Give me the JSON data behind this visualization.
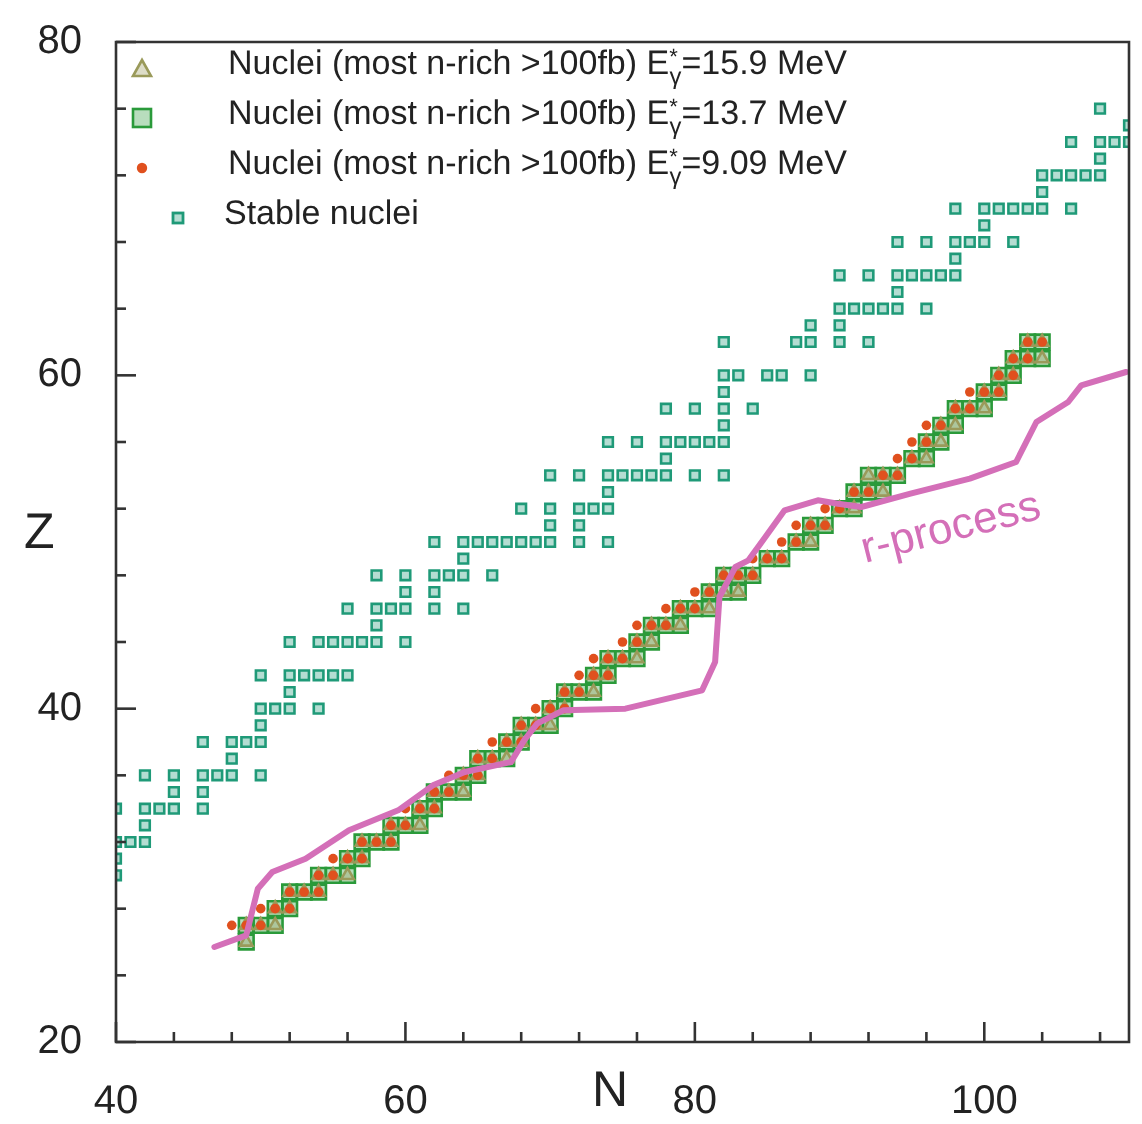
{
  "chart_data": {
    "type": "scatter",
    "xlabel": "N",
    "ylabel": "Z",
    "xlim": [
      40,
      110
    ],
    "ylim": [
      20,
      80
    ],
    "xticks": [
      40,
      {
        "value": 44,
        "label": null
      },
      {
        "value": 48,
        "label": null
      },
      {
        "value": 52,
        "label": null
      },
      {
        "value": 56,
        "label": null
      },
      60,
      {
        "value": 64,
        "label": null
      },
      {
        "value": 68,
        "label": null
      },
      {
        "value": 72,
        "label": null
      },
      {
        "value": 76,
        "label": null
      },
      80,
      {
        "value": 84,
        "label": null
      },
      {
        "value": 88,
        "label": null
      },
      {
        "value": 92,
        "label": null
      },
      {
        "value": 96,
        "label": null
      },
      100,
      {
        "value": 104,
        "label": null
      },
      {
        "value": 108,
        "label": null
      }
    ],
    "yticks": [
      20,
      {
        "value": 24,
        "label": null
      },
      {
        "value": 28,
        "label": null
      },
      {
        "value": 32,
        "label": null
      },
      {
        "value": 36,
        "label": null
      },
      40,
      {
        "value": 44,
        "label": null
      },
      {
        "value": 48,
        "label": null
      },
      {
        "value": 52,
        "label": null
      },
      {
        "value": 56,
        "label": null
      },
      60,
      {
        "value": 64,
        "label": null
      },
      {
        "value": 68,
        "label": null
      },
      {
        "value": 72,
        "label": null
      },
      {
        "value": 76,
        "label": null
      },
      80
    ],
    "legend": "top left",
    "series": [
      {
        "name": "Nuclei (most n-rich >100fb) E$^{*}$$_{γ}$=15.9 MeV",
        "color": "#9a9a5a",
        "marker": "triangle",
        "x": [
          49,
          49,
          50,
          51,
          51,
          52,
          52,
          53,
          54,
          54,
          55,
          56,
          56,
          57,
          57,
          58,
          59,
          59,
          60,
          61,
          61,
          62,
          62,
          63,
          64,
          64,
          65,
          65,
          66,
          67,
          67,
          68,
          68,
          69,
          70,
          70,
          71,
          71,
          72,
          73,
          73,
          74,
          74,
          75,
          76,
          76,
          77,
          77,
          78,
          79,
          79,
          80,
          81,
          81,
          82,
          83,
          82,
          83,
          84,
          85,
          86,
          87,
          88,
          88,
          89,
          90,
          91,
          91,
          92,
          93,
          92,
          93,
          94,
          95,
          96,
          96,
          97,
          97,
          98,
          98,
          99,
          100,
          100,
          101,
          101,
          102,
          102,
          103,
          104,
          103,
          104
        ],
        "values": [
          26,
          27,
          27,
          27,
          28,
          28,
          29,
          29,
          29,
          30,
          30,
          30,
          31,
          31,
          32,
          32,
          32,
          33,
          33,
          33,
          34,
          34,
          35,
          35,
          35,
          36,
          36,
          37,
          37,
          37,
          38,
          38,
          39,
          39,
          39,
          40,
          40,
          41,
          41,
          41,
          42,
          42,
          43,
          43,
          43,
          44,
          44,
          45,
          45,
          45,
          46,
          46,
          46,
          47,
          47,
          47,
          48,
          48,
          48,
          49,
          49,
          50,
          50,
          51,
          51,
          52,
          52,
          53,
          53,
          53,
          54,
          54,
          54,
          55,
          55,
          56,
          56,
          57,
          57,
          58,
          58,
          58,
          59,
          59,
          60,
          60,
          61,
          61,
          61,
          62,
          62
        ]
      },
      {
        "name": "Nuclei (most n-rich >100fb) E$^{*}$$_{γ}$=13.7 MeV",
        "color": "#2a9a3a",
        "marker": "square",
        "x": [
          49,
          49,
          50,
          51,
          51,
          52,
          52,
          53,
          54,
          54,
          55,
          56,
          56,
          57,
          57,
          58,
          59,
          59,
          60,
          61,
          61,
          62,
          62,
          63,
          64,
          64,
          65,
          65,
          66,
          67,
          67,
          68,
          68,
          69,
          70,
          70,
          71,
          71,
          72,
          73,
          73,
          74,
          74,
          75,
          76,
          76,
          77,
          77,
          78,
          79,
          79,
          80,
          81,
          81,
          82,
          83,
          82,
          83,
          84,
          85,
          86,
          87,
          88,
          88,
          89,
          90,
          91,
          91,
          92,
          93,
          92,
          93,
          94,
          95,
          96,
          96,
          97,
          97,
          98,
          98,
          99,
          100,
          100,
          101,
          101,
          102,
          102,
          103,
          104,
          103,
          104
        ],
        "values": [
          26,
          27,
          27,
          27,
          28,
          28,
          29,
          29,
          29,
          30,
          30,
          30,
          31,
          31,
          32,
          32,
          32,
          33,
          33,
          33,
          34,
          34,
          35,
          35,
          35,
          36,
          36,
          37,
          37,
          37,
          38,
          38,
          39,
          39,
          39,
          40,
          40,
          41,
          41,
          41,
          42,
          42,
          43,
          43,
          43,
          44,
          44,
          45,
          45,
          45,
          46,
          46,
          46,
          47,
          47,
          47,
          48,
          48,
          48,
          49,
          49,
          50,
          50,
          51,
          51,
          52,
          52,
          53,
          53,
          53,
          54,
          54,
          54,
          55,
          55,
          56,
          56,
          57,
          57,
          58,
          58,
          58,
          59,
          59,
          60,
          60,
          61,
          61,
          61,
          62,
          62
        ]
      },
      {
        "name": "Nuclei (most n-rich >100fb) E$^{*}$$_{γ}$=9.09 MeV",
        "color": "#e0501e",
        "marker": "circle",
        "x": [
          48,
          49,
          50,
          50,
          51,
          52,
          52,
          53,
          54,
          54,
          55,
          55,
          56,
          57,
          57,
          58,
          59,
          59,
          60,
          60,
          61,
          62,
          62,
          63,
          63,
          64,
          65,
          65,
          66,
          66,
          67,
          68,
          68,
          69,
          69,
          70,
          71,
          71,
          72,
          72,
          73,
          74,
          73,
          74,
          75,
          75,
          76,
          76,
          77,
          78,
          78,
          79,
          80,
          80,
          81,
          82,
          83,
          84,
          84,
          85,
          86,
          86,
          87,
          87,
          88,
          89,
          89,
          90,
          91,
          92,
          93,
          94,
          94,
          95,
          95,
          96,
          96,
          97,
          98,
          99,
          99,
          100,
          101,
          101,
          102,
          102,
          103,
          103,
          104
        ],
        "values": [
          27,
          27,
          27,
          28,
          28,
          28,
          29,
          29,
          29,
          30,
          30,
          31,
          31,
          31,
          32,
          32,
          32,
          33,
          33,
          34,
          34,
          34,
          35,
          35,
          36,
          36,
          36,
          37,
          37,
          38,
          38,
          38,
          39,
          39,
          40,
          40,
          40,
          41,
          41,
          42,
          42,
          42,
          43,
          43,
          43,
          44,
          44,
          45,
          45,
          45,
          46,
          46,
          46,
          47,
          47,
          48,
          48,
          48,
          49,
          49,
          49,
          50,
          50,
          51,
          51,
          51,
          52,
          52,
          53,
          53,
          54,
          54,
          55,
          55,
          56,
          56,
          57,
          57,
          58,
          58,
          59,
          59,
          59,
          60,
          60,
          61,
          61,
          62,
          62
        ]
      },
      {
        "name": "Stable nuclei",
        "color": "#1f9a78",
        "marker": "square",
        "x": [
          40,
          40,
          40,
          41,
          42,
          42,
          40,
          42,
          43,
          44,
          46,
          44,
          46,
          42,
          44,
          46,
          47,
          48,
          50,
          48,
          46,
          48,
          49,
          50,
          50,
          50,
          51,
          52,
          54,
          52,
          50,
          52,
          53,
          54,
          55,
          56,
          52,
          54,
          55,
          56,
          57,
          58,
          60,
          58,
          56,
          58,
          59,
          60,
          62,
          64,
          60,
          62,
          58,
          60,
          62,
          63,
          64,
          66,
          64,
          62,
          64,
          65,
          66,
          67,
          68,
          69,
          70,
          72,
          74,
          70,
          72,
          68,
          70,
          72,
          73,
          74,
          74,
          70,
          72,
          74,
          75,
          76,
          77,
          78,
          80,
          82,
          78,
          74,
          76,
          78,
          79,
          80,
          81,
          82,
          82,
          78,
          80,
          82,
          84,
          82,
          82,
          83,
          85,
          86,
          88,
          82,
          87,
          88,
          90,
          92,
          88,
          90,
          90,
          91,
          92,
          93,
          94,
          96,
          94,
          90,
          92,
          94,
          95,
          96,
          97,
          98,
          98,
          94,
          96,
          98,
          99,
          100,
          102,
          100,
          98,
          100,
          101,
          102,
          103,
          104,
          106,
          104,
          104,
          105,
          106,
          107,
          108,
          108,
          106,
          108,
          109,
          110,
          110,
          108
        ],
        "values": [
          30,
          31,
          32,
          32,
          32,
          33,
          34,
          34,
          34,
          34,
          34,
          35,
          35,
          36,
          36,
          36,
          36,
          36,
          36,
          37,
          38,
          38,
          38,
          38,
          39,
          40,
          40,
          40,
          40,
          41,
          42,
          42,
          42,
          42,
          42,
          42,
          44,
          44,
          44,
          44,
          44,
          44,
          44,
          45,
          46,
          46,
          46,
          46,
          46,
          46,
          47,
          47,
          48,
          48,
          48,
          48,
          48,
          48,
          49,
          50,
          50,
          50,
          50,
          50,
          50,
          50,
          50,
          50,
          50,
          51,
          51,
          52,
          52,
          52,
          52,
          52,
          53,
          54,
          54,
          54,
          54,
          54,
          54,
          54,
          54,
          54,
          55,
          56,
          56,
          56,
          56,
          56,
          56,
          56,
          57,
          58,
          58,
          58,
          58,
          59,
          60,
          60,
          60,
          60,
          60,
          62,
          62,
          62,
          62,
          62,
          63,
          63,
          64,
          64,
          64,
          64,
          64,
          64,
          65,
          66,
          66,
          66,
          66,
          66,
          66,
          66,
          67,
          68,
          68,
          68,
          68,
          68,
          68,
          69,
          70,
          70,
          70,
          70,
          70,
          70,
          70,
          71,
          72,
          72,
          72,
          72,
          72,
          73,
          74,
          74,
          74,
          74,
          75,
          76
        ]
      },
      {
        "name": "r-process",
        "type": "line",
        "color": "#d46fb8",
        "line_style": "solid",
        "x": [
          46.8,
          49,
          49.8,
          50.8,
          53.1,
          56.1,
          59.5,
          61.9,
          64.1,
          67.3,
          68.2,
          69.1,
          70.9,
          75.2,
          80.5,
          81.4,
          81.7,
          82.8,
          83.7,
          86.2,
          88.5,
          89.9,
          91.5,
          94.9,
          99,
          102.2,
          103.6,
          105.8,
          106.7,
          109.8
        ],
        "values": [
          25.7,
          26.4,
          29.2,
          30.2,
          31,
          32.7,
          33.9,
          35.4,
          36.2,
          36.8,
          38.1,
          39.1,
          39.9,
          40,
          41.1,
          42.8,
          46.7,
          48.5,
          48.9,
          51.9,
          52.5,
          52.3,
          52.1,
          52.9,
          53.8,
          54.8,
          57.2,
          58.4,
          59.4,
          60.2
        ]
      }
    ]
  }
}
